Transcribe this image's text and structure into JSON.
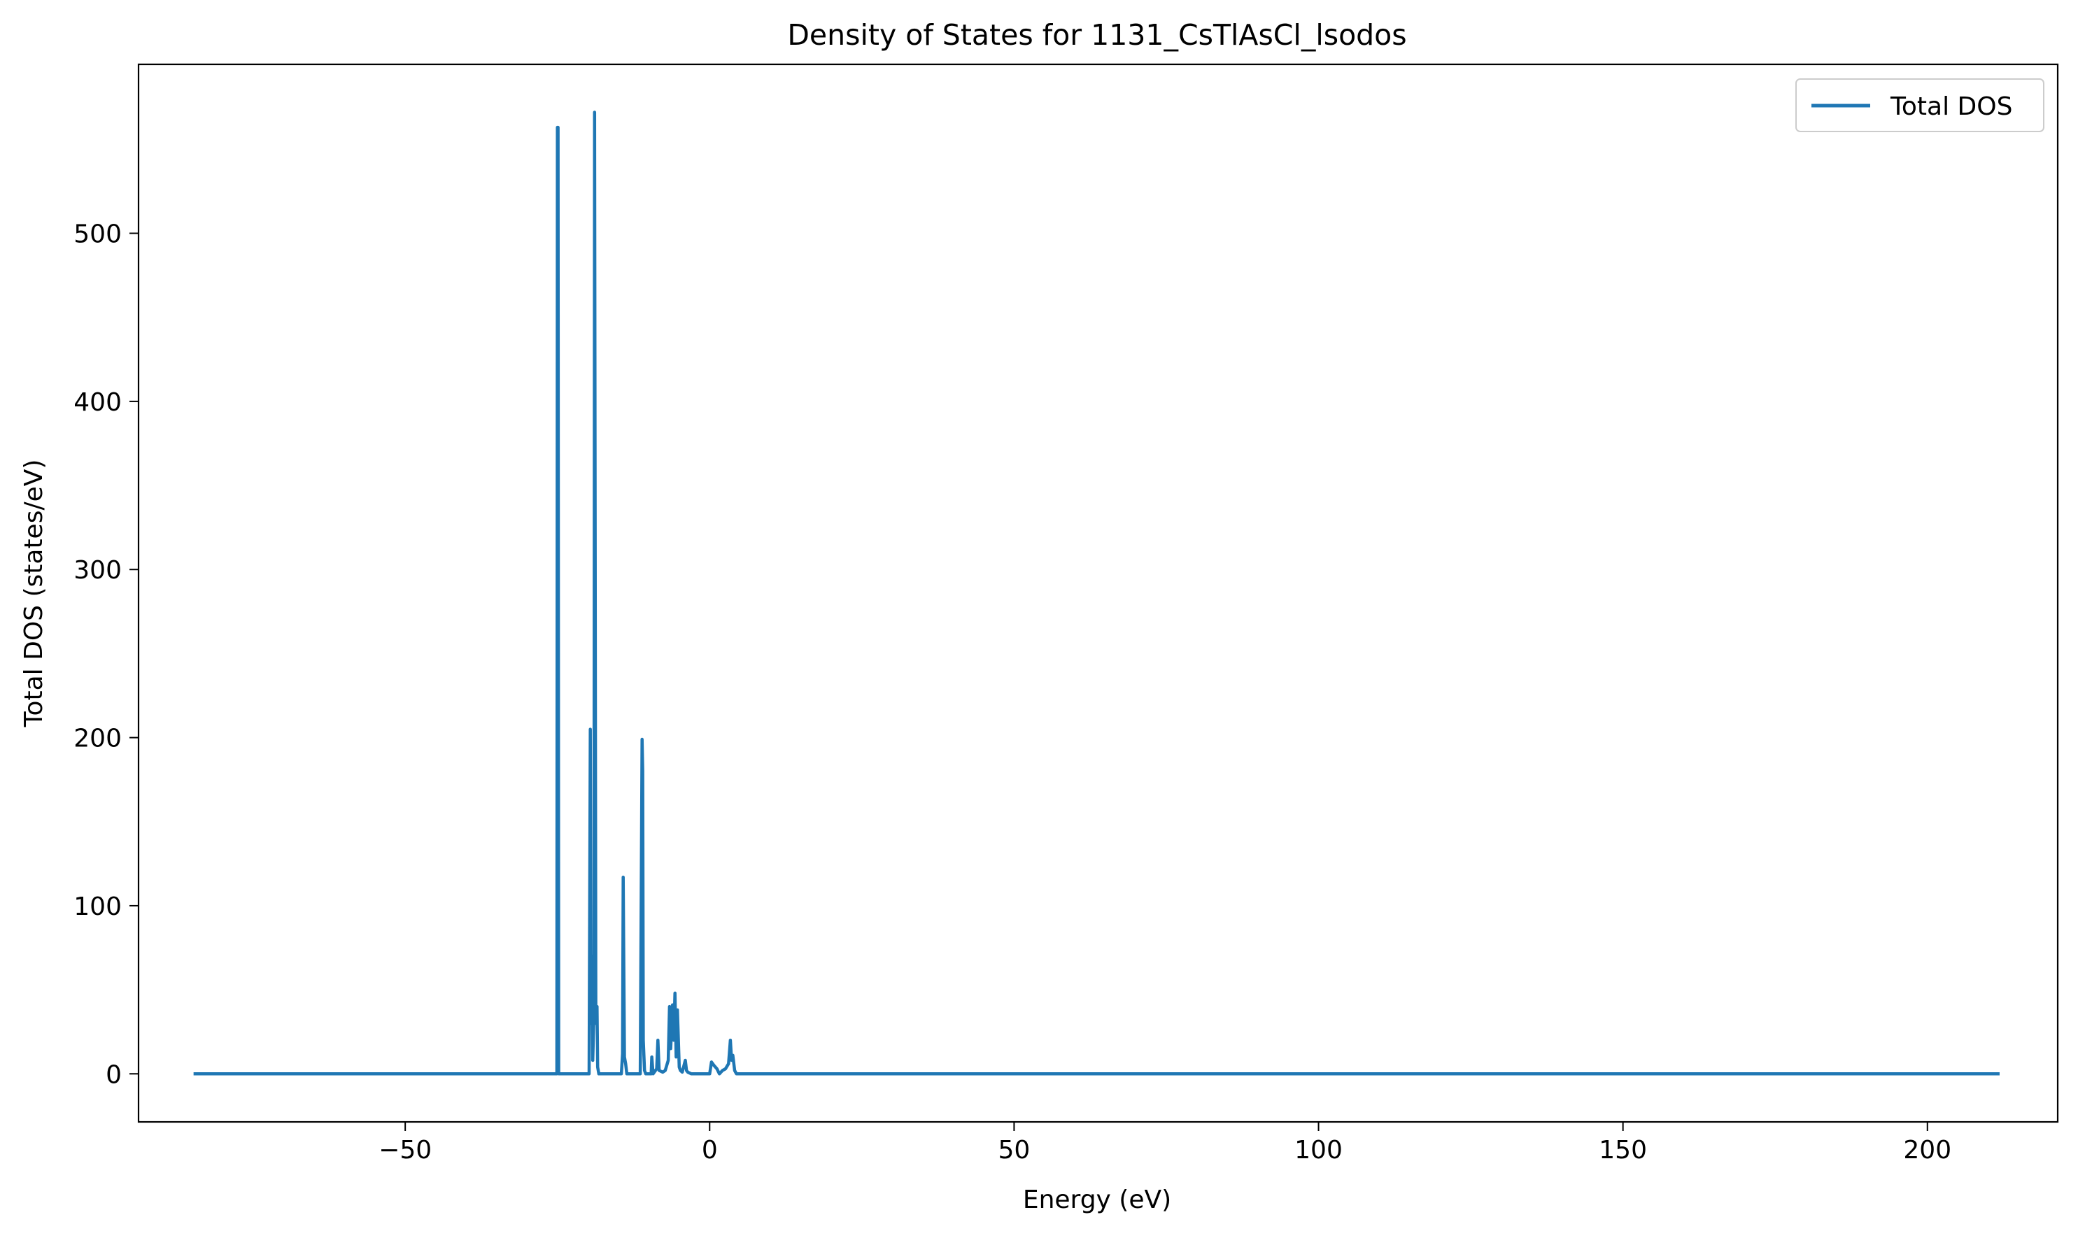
{
  "chart_data": {
    "type": "line",
    "title": "Density of States for 1131_CsTlAsCl_lsodos",
    "xlabel": "Energy (eV)",
    "ylabel": "Total DOS (states/eV)",
    "xlim": [
      -93.8,
      221.4
    ],
    "ylim": [
      -28.6,
      600.5
    ],
    "xticks": [
      -50,
      0,
      50,
      100,
      150,
      200
    ],
    "xtick_labels": [
      "−50",
      "0",
      "50",
      "100",
      "150",
      "200"
    ],
    "yticks": [
      0,
      100,
      200,
      300,
      400,
      500
    ],
    "ytick_labels": [
      "0",
      "100",
      "200",
      "300",
      "400",
      "500"
    ],
    "grid": false,
    "legend_position": "top-right",
    "series": [
      {
        "name": "Total DOS",
        "color": "#1f77b4",
        "x": [
          -84.5,
          -25.1,
          -25.0,
          -24.9,
          -24.8,
          -19.8,
          -19.6,
          -19.5,
          -19.3,
          -19.2,
          -19.0,
          -18.9,
          -18.7,
          -18.5,
          -18.4,
          -18.2,
          -17.9,
          -17.8,
          -14.5,
          -14.3,
          -14.2,
          -14.0,
          -13.8,
          -13.6,
          -11.4,
          -11.2,
          -11.1,
          -11.0,
          -10.9,
          -10.7,
          -10.5,
          -9.6,
          -9.5,
          -9.3,
          -8.7,
          -8.5,
          -8.3,
          -7.7,
          -7.3,
          -6.8,
          -6.6,
          -6.4,
          -6.1,
          -5.9,
          -5.7,
          -5.5,
          -5.3,
          -5.0,
          -4.8,
          -4.5,
          -4.0,
          -3.8,
          -3.6,
          -3.0,
          -2.0,
          -1.0,
          0.0,
          0.3,
          0.7,
          1.2,
          1.6,
          2.1,
          2.6,
          3.1,
          3.4,
          3.6,
          3.8,
          4.1,
          4.4,
          4.8,
          211.6
        ],
        "y": [
          0,
          0,
          563,
          563,
          0,
          0,
          205,
          30,
          70,
          8,
          35,
          572,
          30,
          40,
          4,
          0,
          0,
          0,
          0,
          12,
          117,
          10,
          6,
          0,
          0,
          130,
          199,
          180,
          20,
          2,
          0,
          0,
          10,
          0,
          3,
          20,
          2,
          1,
          2,
          8,
          40,
          15,
          41,
          20,
          48,
          10,
          38,
          4,
          2,
          1,
          8,
          2,
          1,
          0,
          0,
          0,
          0,
          7,
          5,
          3,
          0,
          2,
          3,
          6,
          20,
          8,
          11,
          2,
          0,
          0,
          0
        ]
      }
    ]
  }
}
